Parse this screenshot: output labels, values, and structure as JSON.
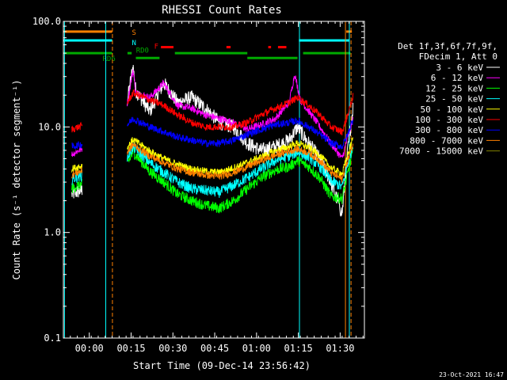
{
  "chart_data": {
    "type": "line",
    "title": "RHESSI Count Rates",
    "xlabel": "Start Time (09-Dec-14 23:56:42)",
    "ylabel": "Count Rate (s⁻¹ detector segment⁻¹)",
    "yscale": "log",
    "ylim": [
      0.1,
      100
    ],
    "xlim_min": [
      -6,
      102
    ],
    "x_ticks": [
      {
        "t": 3.3,
        "label": "00:00"
      },
      {
        "t": 18.3,
        "label": "00:15"
      },
      {
        "t": 33.3,
        "label": "00:30"
      },
      {
        "t": 48.3,
        "label": "00:45"
      },
      {
        "t": 63.3,
        "label": "01:00"
      },
      {
        "t": 78.3,
        "label": "01:15"
      },
      {
        "t": 93.3,
        "label": "01:30"
      }
    ],
    "y_ticks": [
      {
        "v": 0.1,
        "label": "0.1"
      },
      {
        "v": 1.0,
        "label": "1.0"
      },
      {
        "v": 10,
        "label": "10.0"
      },
      {
        "v": 100,
        "label": "100.0"
      }
    ],
    "legend_header": [
      "Det 1f,3f,6f,7f,9f,",
      "FDecim 1, Att 0"
    ],
    "legend_position": "right",
    "grid": false,
    "series": [
      {
        "name": "3 - 6 keV",
        "color": "#ffffff",
        "values": [
          [
            -3,
            2.3
          ],
          [
            2,
            2.6
          ],
          [
            17,
            18
          ],
          [
            19,
            38
          ],
          [
            20,
            22
          ],
          [
            25,
            14
          ],
          [
            30,
            26
          ],
          [
            35,
            17
          ],
          [
            40,
            19
          ],
          [
            45,
            15
          ],
          [
            50,
            11
          ],
          [
            55,
            10
          ],
          [
            60,
            7
          ],
          [
            65,
            6
          ],
          [
            70,
            6.5
          ],
          [
            75,
            7.5
          ],
          [
            78,
            10
          ],
          [
            82,
            7
          ],
          [
            86,
            5
          ],
          [
            90,
            3
          ],
          [
            94,
            1.5
          ],
          [
            96,
            6
          ],
          [
            98,
            16
          ]
        ]
      },
      {
        "name": "6 - 12 keV",
        "color": "#ff00ff",
        "values": [
          [
            -3,
            5.5
          ],
          [
            2,
            6.5
          ],
          [
            17,
            17
          ],
          [
            19,
            35
          ],
          [
            20,
            21
          ],
          [
            25,
            19
          ],
          [
            30,
            26
          ],
          [
            35,
            16
          ],
          [
            40,
            15
          ],
          [
            45,
            13
          ],
          [
            50,
            12
          ],
          [
            55,
            11
          ],
          [
            60,
            9.5
          ],
          [
            65,
            10.5
          ],
          [
            70,
            12
          ],
          [
            75,
            17
          ],
          [
            77,
            32
          ],
          [
            79,
            18
          ],
          [
            84,
            12
          ],
          [
            90,
            7
          ],
          [
            94,
            5
          ],
          [
            96,
            8
          ],
          [
            98,
            12
          ]
        ]
      },
      {
        "name": "12 - 25 keV",
        "color": "#00ff00",
        "values": [
          [
            -3,
            2.6
          ],
          [
            2,
            3.0
          ],
          [
            17,
            4.5
          ],
          [
            19,
            5.8
          ],
          [
            25,
            3.8
          ],
          [
            30,
            3.0
          ],
          [
            35,
            2.3
          ],
          [
            40,
            2.0
          ],
          [
            45,
            1.8
          ],
          [
            50,
            1.7
          ],
          [
            55,
            2.0
          ],
          [
            60,
            2.6
          ],
          [
            65,
            3.3
          ],
          [
            70,
            3.9
          ],
          [
            75,
            4.2
          ],
          [
            78,
            4.8
          ],
          [
            82,
            4.2
          ],
          [
            86,
            3.3
          ],
          [
            90,
            2.2
          ],
          [
            94,
            2.1
          ],
          [
            96,
            3.6
          ],
          [
            98,
            6
          ]
        ]
      },
      {
        "name": "25 - 50 keV",
        "color": "#00ffff",
        "values": [
          [
            -3,
            3.2
          ],
          [
            2,
            3.6
          ],
          [
            17,
            5.2
          ],
          [
            19,
            6.5
          ],
          [
            25,
            4.6
          ],
          [
            30,
            3.7
          ],
          [
            35,
            3.0
          ],
          [
            40,
            2.6
          ],
          [
            45,
            2.5
          ],
          [
            50,
            2.4
          ],
          [
            55,
            2.8
          ],
          [
            60,
            3.3
          ],
          [
            65,
            4.0
          ],
          [
            70,
            4.8
          ],
          [
            75,
            5.3
          ],
          [
            78,
            5.8
          ],
          [
            82,
            5.2
          ],
          [
            86,
            4.2
          ],
          [
            90,
            3.1
          ],
          [
            94,
            2.7
          ],
          [
            96,
            4.4
          ],
          [
            98,
            7
          ]
        ]
      },
      {
        "name": "50 - 100 keV",
        "color": "#ffff00",
        "values": [
          [
            -3,
            4.0
          ],
          [
            2,
            4.4
          ],
          [
            17,
            6.4
          ],
          [
            19,
            7.6
          ],
          [
            25,
            5.9
          ],
          [
            30,
            5.0
          ],
          [
            35,
            4.4
          ],
          [
            40,
            4.0
          ],
          [
            45,
            3.8
          ],
          [
            50,
            3.7
          ],
          [
            55,
            4.1
          ],
          [
            60,
            4.6
          ],
          [
            65,
            5.2
          ],
          [
            70,
            5.9
          ],
          [
            75,
            6.5
          ],
          [
            78,
            7.0
          ],
          [
            82,
            6.4
          ],
          [
            86,
            5.4
          ],
          [
            90,
            4.1
          ],
          [
            94,
            3.6
          ],
          [
            96,
            5.4
          ],
          [
            98,
            8
          ]
        ]
      },
      {
        "name": "100 - 300 keV",
        "color": "#ff0000",
        "values": [
          [
            -3,
            9.5
          ],
          [
            2,
            10.5
          ],
          [
            17,
            17
          ],
          [
            19,
            21
          ],
          [
            25,
            18
          ],
          [
            30,
            16
          ],
          [
            35,
            13
          ],
          [
            40,
            11
          ],
          [
            45,
            10
          ],
          [
            50,
            10
          ],
          [
            55,
            10
          ],
          [
            60,
            11
          ],
          [
            65,
            13
          ],
          [
            70,
            15
          ],
          [
            75,
            17
          ],
          [
            78,
            19
          ],
          [
            82,
            16
          ],
          [
            86,
            13
          ],
          [
            90,
            10
          ],
          [
            94,
            9
          ],
          [
            96,
            13
          ],
          [
            98,
            20
          ]
        ]
      },
      {
        "name": "300 - 800 keV",
        "color": "#0000ff",
        "values": [
          [
            -3,
            6.5
          ],
          [
            2,
            7.0
          ],
          [
            17,
            10.5
          ],
          [
            19,
            12
          ],
          [
            25,
            10
          ],
          [
            30,
            9
          ],
          [
            35,
            8
          ],
          [
            40,
            7.5
          ],
          [
            45,
            7.0
          ],
          [
            50,
            7.0
          ],
          [
            55,
            7.5
          ],
          [
            60,
            8.5
          ],
          [
            65,
            9.5
          ],
          [
            70,
            10.5
          ],
          [
            75,
            11
          ],
          [
            78,
            11.5
          ],
          [
            82,
            10
          ],
          [
            86,
            8.5
          ],
          [
            90,
            7
          ],
          [
            94,
            6.5
          ],
          [
            96,
            8.5
          ],
          [
            98,
            12
          ]
        ]
      },
      {
        "name": "800 - 7000 keV",
        "color": "#ff8000",
        "values": [
          [
            -3,
            3.5
          ],
          [
            2,
            4.0
          ],
          [
            17,
            5.8
          ],
          [
            19,
            6.8
          ],
          [
            25,
            5.3
          ],
          [
            30,
            4.6
          ],
          [
            35,
            4.0
          ],
          [
            40,
            3.7
          ],
          [
            45,
            3.5
          ],
          [
            50,
            3.4
          ],
          [
            55,
            3.7
          ],
          [
            60,
            4.2
          ],
          [
            65,
            4.8
          ],
          [
            70,
            5.4
          ],
          [
            75,
            5.9
          ],
          [
            78,
            6.2
          ],
          [
            82,
            5.7
          ],
          [
            86,
            4.8
          ],
          [
            90,
            3.7
          ],
          [
            94,
            3.2
          ],
          [
            96,
            4.8
          ],
          [
            98,
            7
          ]
        ]
      },
      {
        "name": "7000 - 15000 keV",
        "color": "#808000",
        "values": []
      }
    ],
    "annotations": [
      {
        "text": "S",
        "t": 18.0,
        "color": "#ff8000"
      },
      {
        "text": "N",
        "t": 18.0,
        "color": "#00ffff"
      },
      {
        "text": "F",
        "t": 26.0,
        "color": "#ff0000"
      },
      {
        "text": "RD0",
        "t": 19.5,
        "color": "#00aa00"
      },
      {
        "text": "RD6",
        "t": 7.5,
        "color": "#00aa00"
      }
    ],
    "flag_bars": [
      {
        "color": "#ff8000",
        "v": 80,
        "segments": [
          [
            -6,
            11.5
          ],
          [
            95.5,
            97.5
          ]
        ]
      },
      {
        "color": "#00ffff",
        "v": 66,
        "segments": [
          [
            -6,
            11.5
          ],
          [
            78.5,
            96.5
          ]
        ]
      },
      {
        "color": "#ff0000",
        "v": 57,
        "segments": [
          [
            29,
            33.5
          ],
          [
            52.5,
            54
          ],
          [
            67.5,
            68.5
          ],
          [
            71,
            74
          ]
        ]
      },
      {
        "color": "#00aa00",
        "v": 50,
        "segments": [
          [
            -6,
            11.5
          ],
          [
            17,
            18.5
          ],
          [
            34,
            60
          ],
          [
            80,
            97
          ]
        ]
      },
      {
        "color": "#00aa00",
        "v": 45,
        "segments": [
          [
            20,
            28.5
          ],
          [
            60,
            78
          ]
        ]
      }
    ],
    "vlines": [
      {
        "t": -5.6,
        "color": "#00ffff",
        "dash": false
      },
      {
        "t": 9.2,
        "color": "#00ffff",
        "dash": false
      },
      {
        "t": 11.6,
        "color": "#ff8000",
        "dash": true
      },
      {
        "t": 78.7,
        "color": "#00ffff",
        "dash": false
      },
      {
        "t": 95.2,
        "color": "#ff8000",
        "dash": false
      },
      {
        "t": 96.6,
        "color": "#00ffff",
        "dash": false
      },
      {
        "t": 97.2,
        "color": "#ff8000",
        "dash": true
      }
    ],
    "data_gap": [
      0.8,
      16.8
    ]
  },
  "footer_timestamp": "23-Oct-2021 16:47"
}
